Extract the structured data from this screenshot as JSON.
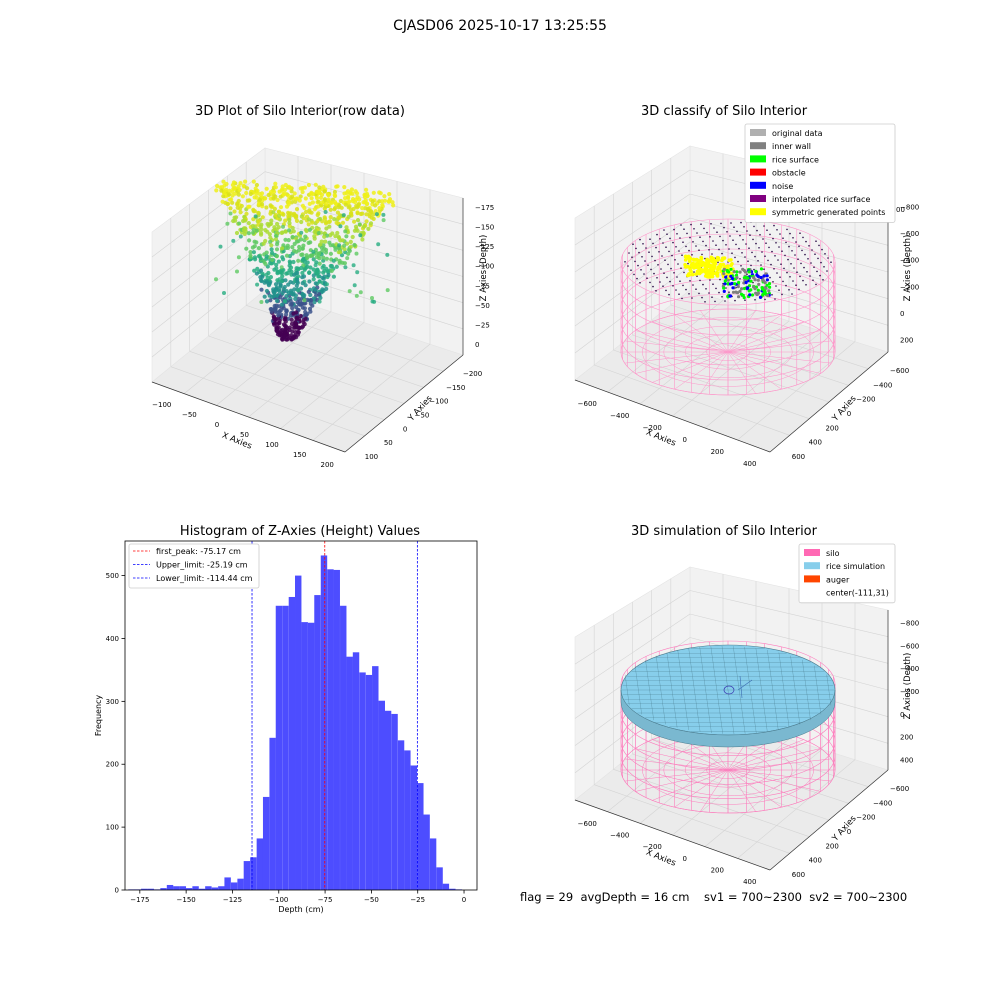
{
  "figure": {
    "suptitle": "CJASD06 2025-10-17 13:25:55",
    "footer": "flag = 29  avgDepth = 16 cm    sv1 = 700~2300  sv2 = 700~2300"
  },
  "chart_data": [
    {
      "type": "scatter3d",
      "title": "3D Plot of Silo Interior(row data)",
      "xlabel": "X Axies",
      "ylabel": "Y Axies",
      "zlabel": "Z Axies (Depth)",
      "xticks": [
        "−100",
        "−50",
        "0",
        "50",
        "100",
        "150",
        "200"
      ],
      "yticks": [
        "100",
        "50",
        "0",
        "−50",
        "−100",
        "−150",
        "−200"
      ],
      "zticks": [
        "0",
        "−25",
        "−50",
        "−75",
        "−100",
        "−125",
        "−150",
        "−175"
      ],
      "xlim": [
        -120,
        220
      ],
      "ylim": [
        -210,
        120
      ],
      "zlim": [
        -185,
        10
      ],
      "colormap": "viridis",
      "point_cloud": {
        "x_center": 40,
        "y_center": -30,
        "z_top": -5,
        "z_bottom": -175,
        "description": "dense funnel of points, wide at top, narrowing downward"
      }
    },
    {
      "type": "scatter3d",
      "title": "3D classify of Silo Interior",
      "xlabel": "X Axies",
      "ylabel": "Y Axies",
      "zlabel": "Z Axies (Depth)",
      "xticks": [
        "−600",
        "−400",
        "−200",
        "0",
        "200",
        "400"
      ],
      "yticks": [
        "600",
        "400",
        "200",
        "0",
        "−200",
        "−400",
        "−600"
      ],
      "zticks": [
        "200",
        "0",
        "−200",
        "−400",
        "−600",
        "−800"
      ],
      "zticks_partial": [
        "00"
      ],
      "legend": {
        "placement": "top-right",
        "entries": [
          {
            "label": "original data",
            "color": "#b0b0b0"
          },
          {
            "label": "inner wall",
            "color": "#808080"
          },
          {
            "label": "rice surface",
            "color": "#00ff00"
          },
          {
            "label": "obstacle",
            "color": "#ff0000"
          },
          {
            "label": "noise",
            "color": "#0000ff"
          },
          {
            "label": "interpolated rice surface",
            "color": "#800080"
          },
          {
            "label": "symmetric generated points",
            "color": "#ffff00"
          }
        ]
      }
    },
    {
      "type": "histogram",
      "title": "Histogram of Z-Axies (Height) Values",
      "xlabel": "Depth (cm)",
      "ylabel": "Frequency",
      "xticks": [
        -175,
        -150,
        -125,
        -100,
        -75,
        -50,
        -25,
        0
      ],
      "yticks": [
        0,
        100,
        200,
        300,
        400,
        500
      ],
      "xlim": [
        -183,
        7
      ],
      "ylim": [
        0,
        555
      ],
      "bar_color": "#4d4dff",
      "bin_width": 3.47,
      "bins": [
        {
          "x": -179.5,
          "count": 1
        },
        {
          "x": -176.1,
          "count": 1
        },
        {
          "x": -172.6,
          "count": 2
        },
        {
          "x": -169.1,
          "count": 2
        },
        {
          "x": -165.7,
          "count": 1
        },
        {
          "x": -162.2,
          "count": 3
        },
        {
          "x": -158.7,
          "count": 8
        },
        {
          "x": -155.3,
          "count": 6
        },
        {
          "x": -151.8,
          "count": 6
        },
        {
          "x": -148.4,
          "count": 3
        },
        {
          "x": -144.9,
          "count": 6
        },
        {
          "x": -141.4,
          "count": 2
        },
        {
          "x": -138.0,
          "count": 6
        },
        {
          "x": -134.5,
          "count": 4
        },
        {
          "x": -131.0,
          "count": 6
        },
        {
          "x": -127.6,
          "count": 20
        },
        {
          "x": -124.1,
          "count": 12
        },
        {
          "x": -120.6,
          "count": 18
        },
        {
          "x": -117.2,
          "count": 46
        },
        {
          "x": -113.7,
          "count": 52
        },
        {
          "x": -110.2,
          "count": 82
        },
        {
          "x": -106.8,
          "count": 148
        },
        {
          "x": -103.3,
          "count": 242
        },
        {
          "x": -99.9,
          "count": 452
        },
        {
          "x": -96.4,
          "count": 452
        },
        {
          "x": -92.9,
          "count": 466
        },
        {
          "x": -89.5,
          "count": 500
        },
        {
          "x": -86.0,
          "count": 426
        },
        {
          "x": -82.5,
          "count": 425
        },
        {
          "x": -79.1,
          "count": 469
        },
        {
          "x": -75.6,
          "count": 532
        },
        {
          "x": -72.1,
          "count": 510
        },
        {
          "x": -68.7,
          "count": 509
        },
        {
          "x": -65.2,
          "count": 452
        },
        {
          "x": -61.7,
          "count": 371
        },
        {
          "x": -58.3,
          "count": 378
        },
        {
          "x": -54.8,
          "count": 346
        },
        {
          "x": -51.3,
          "count": 342
        },
        {
          "x": -47.9,
          "count": 356
        },
        {
          "x": -44.4,
          "count": 301
        },
        {
          "x": -41.0,
          "count": 285
        },
        {
          "x": -37.5,
          "count": 280
        },
        {
          "x": -34.0,
          "count": 238
        },
        {
          "x": -30.6,
          "count": 222
        },
        {
          "x": -27.1,
          "count": 198
        },
        {
          "x": -23.6,
          "count": 170
        },
        {
          "x": -20.2,
          "count": 120
        },
        {
          "x": -16.7,
          "count": 82
        },
        {
          "x": -13.2,
          "count": 36
        },
        {
          "x": -9.8,
          "count": 10
        },
        {
          "x": -6.3,
          "count": 2
        },
        {
          "x": -2.8,
          "count": 1
        }
      ],
      "vlines": [
        {
          "value": -75.17,
          "color": "#ff0000",
          "label": "first_peak: -75.17 cm"
        },
        {
          "value": -25.19,
          "color": "#0000ff",
          "label": "Upper_limit: -25.19 cm"
        },
        {
          "value": -114.44,
          "color": "#0000ff",
          "label": "Lower_limit: -114.44 cm"
        }
      ],
      "legend": {
        "placement": "top-left"
      }
    },
    {
      "type": "surface3d",
      "title": "3D simulation of Silo Interior",
      "xlabel": "X Axies",
      "ylabel": "Y Axies",
      "zlabel": "Z Axies (Depth)",
      "xticks": [
        "−600",
        "−400",
        "−200",
        "0",
        "200",
        "400"
      ],
      "yticks": [
        "600",
        "400",
        "200",
        "0",
        "−200",
        "−400",
        "−600"
      ],
      "zticks": [
        "400",
        "200",
        "0",
        "−200",
        "−400",
        "−600",
        "−800"
      ],
      "legend": {
        "placement": "top-right",
        "entries": [
          {
            "label": "silo",
            "color": "#ff69b4"
          },
          {
            "label": "rice simulation",
            "color": "#87ceeb"
          },
          {
            "label": "auger",
            "color": "#ff4500"
          },
          {
            "label": "center(-111,31)",
            "color": "none"
          }
        ]
      }
    }
  ]
}
